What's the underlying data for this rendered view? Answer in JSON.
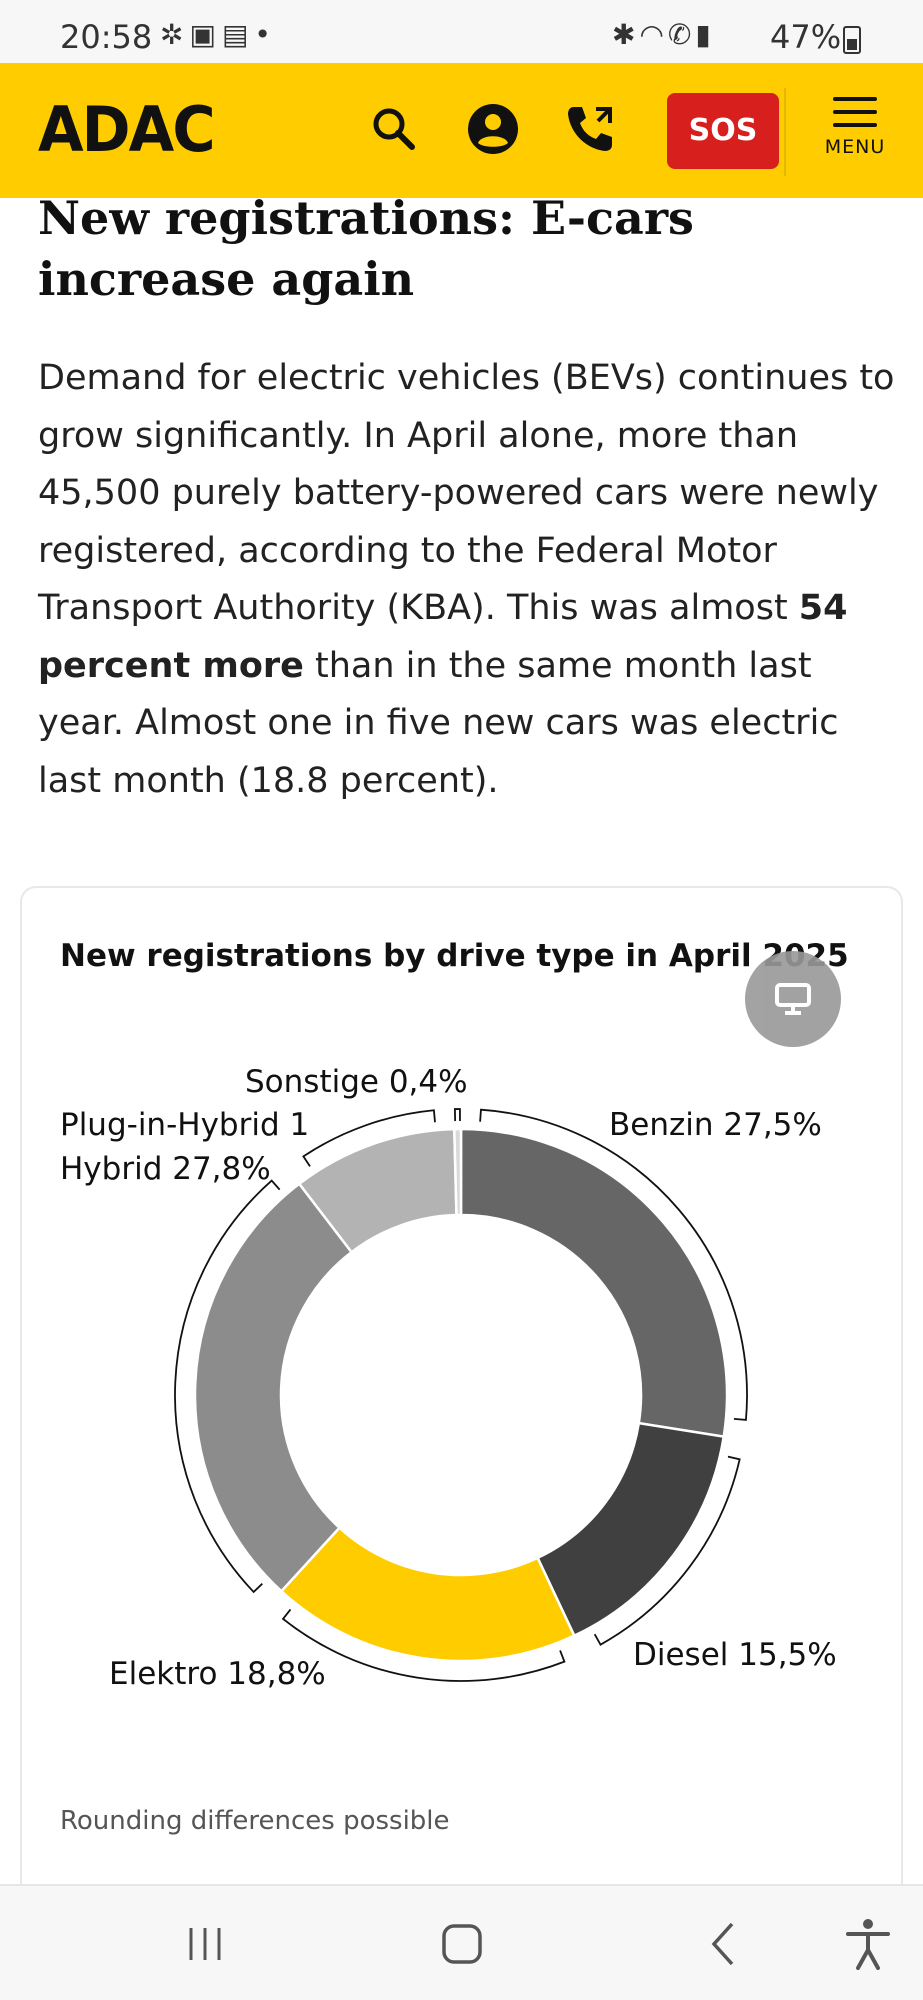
{
  "status_bar": {
    "time": "20:58",
    "left_icons": [
      "fan-icon",
      "image-icon",
      "calendar-icon",
      "dot-icon"
    ],
    "right_icons": [
      "bluetooth-icon",
      "wifi-icon",
      "call-icon",
      "signal-icon"
    ],
    "battery": "47%"
  },
  "header": {
    "logo": "ADAC",
    "icons": [
      "search-icon",
      "account-icon",
      "phone-icon"
    ],
    "sos_label": "SOS",
    "menu_label": "MENU",
    "colors": {
      "brand": "#ffcc00",
      "sos": "#d7201e"
    }
  },
  "article": {
    "title": "New registrations: E-cars increase again",
    "body_part1": "Demand for electric vehicles (BEVs) continues to grow significantly. In April alone, more than 45,500 purely battery-powered cars were newly registered, according to the Federal Motor Transport Authority (KBA). This was almost ",
    "body_bold": "54 percent more",
    "body_part2": " than in the same month last year. Almost one in five new cars was electric last month (18.8 percent)."
  },
  "chart_card": {
    "title": "New registrations by drive type in April 2025",
    "note": "Rounding differences possible",
    "float_icon": "monitor-icon"
  },
  "chart_data": {
    "type": "pie",
    "donut": true,
    "title": "New registrations by drive type in April 2025",
    "labels": [
      "Benzin 27,5%",
      "Diesel 15,5%",
      "Elektro 18,8%",
      "Hybrid 27,8%",
      "Plug-in-Hybrid 1",
      "Sonstige 0,4%"
    ],
    "slices": [
      {
        "name": "Benzin",
        "value": 27.5,
        "color": "#666666"
      },
      {
        "name": "Diesel",
        "value": 15.5,
        "color": "#404040"
      },
      {
        "name": "Elektro",
        "value": 18.8,
        "color": "#ffcc00"
      },
      {
        "name": "Hybrid",
        "value": 27.8,
        "color": "#8c8c8c"
      },
      {
        "name": "Plug-in-Hybrid",
        "value": 10.0,
        "color": "#b3b3b3"
      },
      {
        "name": "Sonstige",
        "value": 0.4,
        "color": "#d9d9d9"
      }
    ]
  },
  "nav_bar": {
    "items": [
      "recent-apps-icon",
      "home-icon",
      "back-icon",
      "accessibility-icon"
    ]
  }
}
